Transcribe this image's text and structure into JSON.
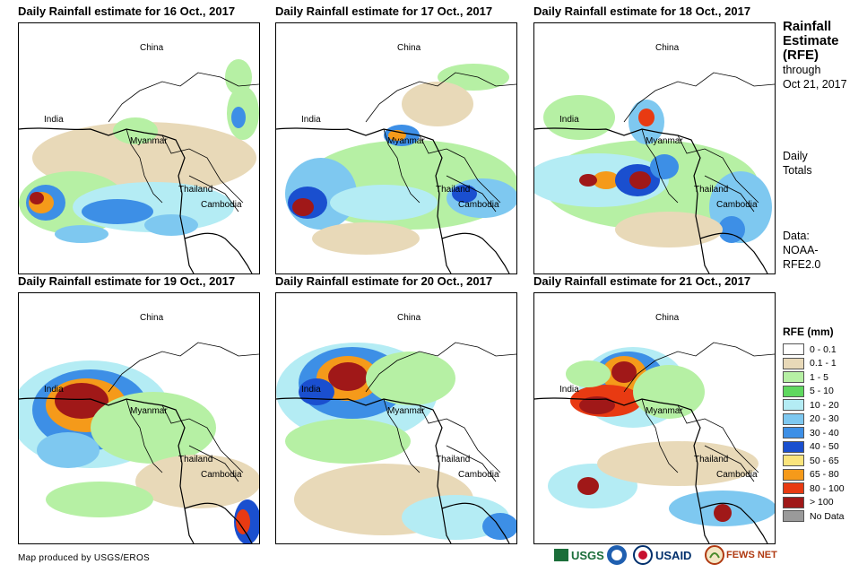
{
  "panels": [
    {
      "title": "Daily Rainfall estimate for 16 Oct., 2017"
    },
    {
      "title": "Daily Rainfall estimate for 17 Oct., 2017"
    },
    {
      "title": "Daily Rainfall estimate for 18 Oct., 2017"
    },
    {
      "title": "Daily Rainfall estimate for 19 Oct., 2017"
    },
    {
      "title": "Daily Rainfall estimate for 20 Oct., 2017"
    },
    {
      "title": "Daily Rainfall estimate for 21 Oct., 2017"
    }
  ],
  "place_labels": {
    "china": "China",
    "india": "India",
    "myanmar": "Myanmar",
    "thailand": "Thailand",
    "cambodia": "Cambodia"
  },
  "sidebar": {
    "heading_line1": "Rainfall",
    "heading_line2": "Estimate",
    "heading_line3": "(RFE)",
    "through": "through",
    "date": "Oct 21, 2017",
    "daily": "Daily",
    "totals": "Totals",
    "data_label": "Data:",
    "data_source_1": "NOAA-",
    "data_source_2": "RFE2.0"
  },
  "legend": {
    "title": "RFE (mm)",
    "items": [
      {
        "label": "0 - 0.1",
        "color": "#ffffff"
      },
      {
        "label": "0.1 - 1",
        "color": "#e8d9b8"
      },
      {
        "label": "1 - 5",
        "color": "#b6f0a4"
      },
      {
        "label": "5 - 10",
        "color": "#5fd85f"
      },
      {
        "label": "10 - 20",
        "color": "#b4ecf4"
      },
      {
        "label": "20 - 30",
        "color": "#7ec8f0"
      },
      {
        "label": "30 - 40",
        "color": "#3d8fe6"
      },
      {
        "label": "40 - 50",
        "color": "#1a4fcf"
      },
      {
        "label": "50 - 65",
        "color": "#fae47c"
      },
      {
        "label": "65 - 80",
        "color": "#f59a1a"
      },
      {
        "label": "80 - 100",
        "color": "#e83a12"
      },
      {
        "label": "> 100",
        "color": "#a01818"
      },
      {
        "label": "No Data",
        "color": "#9a9a9a"
      }
    ]
  },
  "footer": {
    "credit": "Map produced by USGS/EROS",
    "logos": {
      "usgs": "USGS",
      "usaid": "USAID",
      "fewsnet": "FEWS NET"
    }
  }
}
